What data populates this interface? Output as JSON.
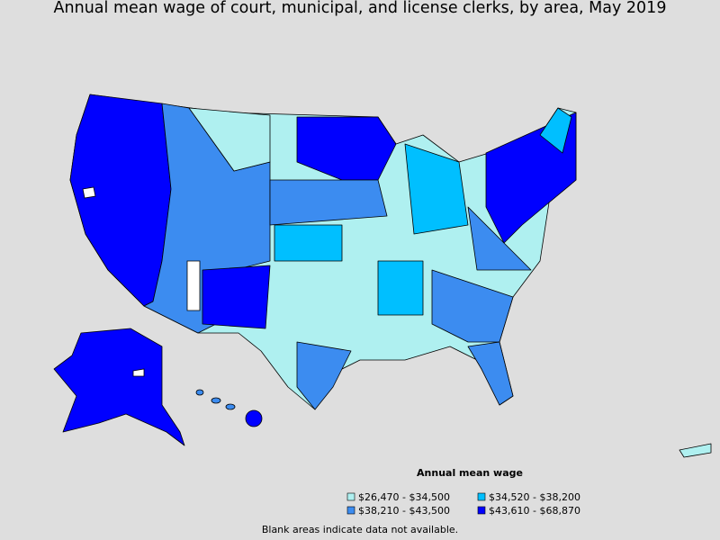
{
  "title": "Annual mean wage of court, municipal, and license clerks, by area, May 2019",
  "legend": {
    "title": "Annual mean wage",
    "items": [
      {
        "label": "$26,470 - $34,500",
        "color": "#aff0f0"
      },
      {
        "label": "$34,520 - $38,200",
        "color": "#00bfff"
      },
      {
        "label": "$38,210 - $43,500",
        "color": "#3c8cf0"
      },
      {
        "label": "$43,610 - $68,870",
        "color": "#0000ff"
      }
    ]
  },
  "note": "Blank areas indicate data not available."
}
